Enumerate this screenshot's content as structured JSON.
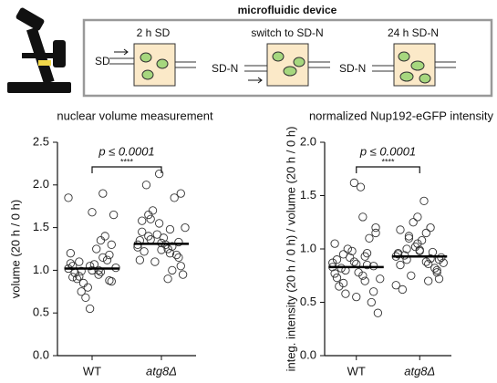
{
  "diagram": {
    "title": "microfluidic device",
    "panels": [
      {
        "label": "2 h SD",
        "inlet": "SD"
      },
      {
        "label": "switch to SD-N",
        "inlet": "SD-N"
      },
      {
        "label": "24 h SD-N",
        "inlet": "SD-N"
      }
    ]
  },
  "chart_data": [
    {
      "type": "strip",
      "title": "nuclear volume measurement",
      "y_label": "volume (20 h / 0 h)",
      "ylim": [
        0,
        2.5
      ],
      "yticks": [
        {
          "value": 0,
          "label": "0.0"
        },
        0.5,
        {
          "value": 1,
          "label": "1.0"
        },
        1.5,
        {
          "value": 2,
          "label": "2.0"
        },
        2.5
      ],
      "marker_color": "#333333",
      "annotation": {
        "text": "p ≤ 0.0001",
        "stars": "****"
      },
      "groups": [
        {
          "name": "WT",
          "mean": 1.02,
          "values": [
            1.02,
            0.95,
            1.1,
            0.88,
            1.05,
            1.2,
            0.98,
            0.75,
            1.3,
            1.0,
            0.92,
            1.15,
            0.85,
            1.65,
            1.07,
            0.97,
            1.4,
            0.68,
            1.03,
            1.25,
            0.9,
            1.12,
            0.8,
            1.85,
            1.0,
            0.93,
            1.18,
            0.55,
            1.08,
            1.35,
            0.99,
            0.87,
            1.68,
            1.05,
            1.9
          ]
        },
        {
          "name": "atg8Δ",
          "mean": 1.31,
          "values": [
            1.3,
            1.25,
            1.4,
            1.15,
            1.55,
            1.35,
            1.2,
            1.6,
            1.05,
            1.32,
            1.45,
            1.28,
            1.7,
            0.95,
            1.38,
            1.22,
            1.85,
            1.1,
            1.5,
            1.3,
            2.0,
            1.18,
            1.42,
            1.27,
            0.9,
            1.65,
            1.33,
            2.13,
            1.12,
            1.48,
            1.36,
            1.9,
            1.24,
            1.58,
            1.0
          ]
        }
      ]
    },
    {
      "type": "strip",
      "title": "normalized Nup192-eGFP intensity",
      "y_label": "integ. intensity (20 h / 0 h) / volume (20 h / 0 h)",
      "ylim": [
        0,
        2.0
      ],
      "yticks": [
        {
          "value": 0,
          "label": "0.0"
        },
        0.5,
        {
          "value": 1,
          "label": "1.0"
        },
        1.5,
        {
          "value": 2,
          "label": "2.0"
        }
      ],
      "marker_color": "#333333",
      "annotation": {
        "text": "p ≤ 0.0001",
        "stars": "****"
      },
      "groups": [
        {
          "name": "WT",
          "mean": 0.83,
          "values": [
            0.83,
            0.75,
            0.95,
            0.6,
            0.88,
            1.05,
            0.7,
            0.8,
            1.2,
            0.55,
            0.9,
            0.85,
            1.0,
            0.4,
            0.78,
            0.65,
            1.1,
            0.92,
            0.72,
            1.58,
            0.82,
            0.5,
            0.98,
            0.87,
            1.3,
            0.68,
            0.84,
            1.62,
            0.77,
            0.93,
            0.58,
            1.15,
            0.86,
            0.73,
            0.96
          ]
        },
        {
          "name": "atg8Δ",
          "mean": 0.93,
          "values": [
            0.93,
            0.88,
            1.0,
            0.8,
            1.05,
            0.95,
            0.7,
            1.12,
            0.9,
            0.98,
            0.85,
            1.2,
            0.75,
            0.92,
            1.08,
            0.62,
            0.97,
            1.25,
            0.87,
            1.45,
            0.94,
            0.82,
            1.02,
            0.66,
            1.15,
            0.9,
            0.78,
            1.3,
            0.96,
            0.86,
            1.1,
            0.72,
            0.99,
            1.18,
            0.91
          ]
        }
      ]
    }
  ]
}
